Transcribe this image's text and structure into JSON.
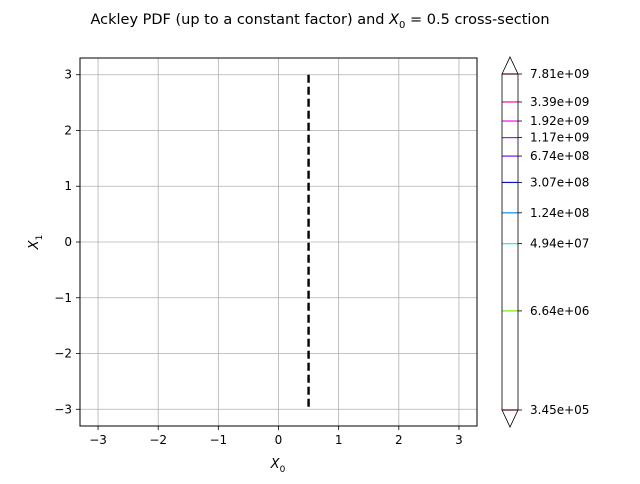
{
  "chart_data": {
    "type": "contour",
    "title_main": "Ackley PDF (up to a constant factor) and ",
    "title_var": "X",
    "title_sub": "0",
    "title_tail": " = 0.5 cross-section",
    "xlabel_var": "X",
    "xlabel_sub": "0",
    "ylabel_var": "X",
    "ylabel_sub": "1",
    "xlim": [
      -3.3,
      3.3
    ],
    "ylim": [
      -3.3,
      3.3
    ],
    "x_ticks": [
      -3,
      -2,
      -1,
      0,
      1,
      2,
      3
    ],
    "y_ticks": [
      -3,
      -2,
      -1,
      0,
      1,
      2,
      3
    ],
    "x_tick_labels": [
      "−3",
      "−2",
      "−1",
      "0",
      "1",
      "2",
      "3"
    ],
    "y_tick_labels": [
      "−3",
      "−2",
      "−1",
      "0",
      "1",
      "2",
      "3"
    ],
    "grid": true,
    "cross_section_x": 0.5,
    "levels": [
      {
        "label": "3.45e+05",
        "color": "#ee1111"
      },
      {
        "label": "6.64e+06",
        "color": "#66ee11"
      },
      {
        "label": "4.94e+07",
        "color": "#11eeee"
      },
      {
        "label": "1.24e+08",
        "color": "#1188ee"
      },
      {
        "label": "3.07e+08",
        "color": "#1111cc"
      },
      {
        "label": "6.74e+08",
        "color": "#7711ee"
      },
      {
        "label": "1.17e+09",
        "color": "#bb11ee"
      },
      {
        "label": "1.92e+09",
        "color": "#ee11ee"
      },
      {
        "label": "3.39e+09",
        "color": "#ee1188"
      },
      {
        "label": "7.81e+09",
        "color": "#ee1133"
      }
    ]
  }
}
